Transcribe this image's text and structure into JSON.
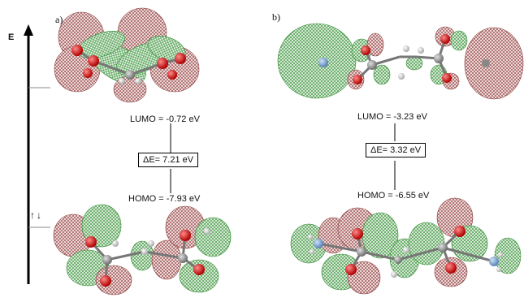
{
  "energy_axis_label": "E",
  "spin_arrows": "↑↓",
  "panel_a": {
    "letter": "a)",
    "lumo": "LUMO =  -0.72 eV",
    "gap": "ΔE= 7.21 eV",
    "homo": "HOMO = -7.93 eV"
  },
  "panel_b": {
    "letter": "b)",
    "lumo": "LUMO =  -3.23 eV",
    "gap": "ΔE= 3.32 eV",
    "homo": "HOMO = -6.55 eV"
  },
  "colors": {
    "lobe_red": "#8c3a3a",
    "lobe_green": "#2f8a2f",
    "oxygen": "#d61a1a",
    "carbon": "#9a9a9a",
    "hydrogen": "#e8e8e8",
    "nitrogen": "#7fa7d6"
  }
}
